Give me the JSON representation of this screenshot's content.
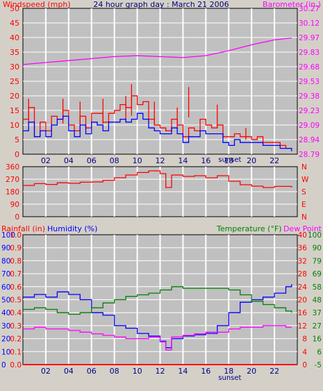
{
  "chart_data": [
    {
      "type": "line",
      "title": "24 hour graph day : March 21 2006",
      "left_axis_label": "Windspeed (mph)",
      "right_axis_label": "Barometer (in.)",
      "xlabel": "sunset",
      "x_ticks": [
        "02",
        "04",
        "06",
        "08",
        "10",
        "12",
        "14",
        "16",
        "18",
        "20",
        "22"
      ],
      "xlim": [
        0,
        24
      ],
      "ylim_left": [
        0,
        50
      ],
      "y_ticks_left": [
        "0",
        "5",
        "10",
        "15",
        "20",
        "25",
        "30",
        "35",
        "40",
        "45",
        "50"
      ],
      "ylim_right": [
        28.79,
        30.27
      ],
      "y_ticks_right": [
        "28.79",
        "28.94",
        "29.09",
        "29.23",
        "29.38",
        "29.53",
        "29.68",
        "29.83",
        "29.97",
        "30.12",
        "30.27"
      ],
      "grid": true,
      "series": [
        {
          "name": "Windspeed (mph)",
          "color": "#ff0000",
          "axis": "left",
          "x": [
            0,
            0.5,
            1,
            1.5,
            2,
            2.5,
            3,
            3.5,
            4,
            4.5,
            5,
            5.5,
            6,
            6.5,
            7,
            7.5,
            8,
            8.5,
            9,
            9.5,
            10,
            10.5,
            11,
            11.5,
            12,
            12.5,
            13,
            13.5,
            14,
            14.5,
            15,
            15.5,
            16,
            16.5,
            17,
            17.5,
            18,
            18.5,
            19,
            19.5,
            20,
            20.5,
            21,
            21.5,
            22,
            22.5,
            23,
            23.5
          ],
          "y": [
            12,
            16,
            6,
            11,
            8,
            13,
            12,
            15,
            10,
            8,
            13,
            9,
            14,
            14,
            11,
            14,
            15,
            17,
            16,
            20,
            17,
            18,
            12,
            10,
            9,
            8,
            12,
            10,
            6,
            9,
            8,
            12,
            10,
            9,
            10,
            6,
            6,
            7,
            6,
            6,
            5,
            6,
            4,
            4,
            4,
            3,
            2,
            2
          ]
        },
        {
          "name": "Gust",
          "color": "#ff0000",
          "axis": "left",
          "x": [
            0.5,
            3.5,
            5,
            7,
            9,
            9.5,
            11.5,
            13.5,
            14.5,
            17,
            19.5
          ],
          "y": [
            19,
            19,
            18,
            19,
            20,
            24,
            18,
            16,
            23,
            17,
            9
          ]
        },
        {
          "name": "Avg windspeed",
          "color": "#0000ff",
          "axis": "left",
          "x": [
            0,
            0.5,
            1,
            1.5,
            2,
            2.5,
            3,
            3.5,
            4,
            4.5,
            5,
            5.5,
            6,
            6.5,
            7,
            7.5,
            8,
            8.5,
            9,
            9.5,
            10,
            10.5,
            11,
            11.5,
            12,
            12.5,
            13,
            13.5,
            14,
            14.5,
            15,
            15.5,
            16,
            16.5,
            17,
            17.5,
            18,
            18.5,
            19,
            19.5,
            20,
            20.5,
            21,
            21.5,
            22,
            22.5,
            23,
            23.5
          ],
          "y": [
            8,
            11,
            6,
            8,
            6,
            10,
            12,
            13,
            8,
            6,
            10,
            7,
            11,
            10,
            8,
            11,
            11,
            12,
            11,
            12,
            14,
            12,
            9,
            8,
            7,
            7,
            9,
            7,
            4,
            6,
            6,
            8,
            7,
            7,
            7,
            4,
            3,
            5,
            4,
            4,
            4,
            4,
            3,
            3,
            3,
            2,
            2,
            1
          ]
        },
        {
          "name": "Barometer (in.)",
          "color": "#ff00ff",
          "axis": "right",
          "x": [
            0,
            2,
            4,
            6,
            8,
            10,
            12,
            14,
            16,
            18,
            20,
            22,
            23.5
          ],
          "y": [
            29.7,
            29.72,
            29.74,
            29.76,
            29.78,
            29.79,
            29.78,
            29.77,
            29.79,
            29.84,
            29.9,
            29.95,
            29.97
          ]
        }
      ]
    },
    {
      "type": "line",
      "ylim": [
        0,
        360
      ],
      "y_ticks_left": [
        "0",
        "90",
        "180",
        "270",
        "360"
      ],
      "y_ticks_right": [
        "N",
        "E",
        "S",
        "W",
        "N"
      ],
      "series": [
        {
          "name": "Wind direction",
          "color": "#ff0000",
          "x": [
            0,
            1,
            2,
            3,
            4,
            5,
            6,
            7,
            8,
            9,
            10,
            11,
            12,
            12.5,
            13,
            14,
            15,
            16,
            17,
            18,
            19,
            20,
            21,
            22,
            23.5
          ],
          "y": [
            225,
            238,
            232,
            244,
            240,
            248,
            250,
            262,
            280,
            300,
            318,
            330,
            310,
            210,
            300,
            290,
            295,
            280,
            295,
            255,
            230,
            220,
            210,
            218,
            210
          ]
        }
      ]
    },
    {
      "type": "line",
      "left_axis_label_1": "Rainfall (in)",
      "left_axis_label_2": "Humidity (%)",
      "right_axis_label_1": "Temperature (°F)",
      "right_axis_label_2": "Dew Point",
      "xlabel": "sunset",
      "x_ticks": [
        "02",
        "04",
        "06",
        "08",
        "10",
        "12",
        "14",
        "16",
        "18",
        "20",
        "22"
      ],
      "xlim": [
        0,
        24
      ],
      "y_ticks_rain": [
        "0.0",
        "0.1",
        "0.2",
        "0.3",
        "0.4",
        "0.5",
        "0.6",
        "0.7",
        "0.8",
        "0.9",
        "1.0"
      ],
      "y_ticks_humidity": [
        "0",
        "10",
        "20",
        "30",
        "40",
        "50",
        "60",
        "70",
        "80",
        "90",
        "100"
      ],
      "y_ticks_temp_f": [
        "0",
        "4",
        "8",
        "12",
        "16",
        "20",
        "24",
        "28",
        "32",
        "36",
        "40"
      ],
      "y_ticks_temp_f2": [
        "-5",
        "6",
        "16",
        "27",
        "37",
        "48",
        "58",
        "69",
        "79",
        "90",
        "100"
      ],
      "series": [
        {
          "name": "Rainfall (in)",
          "color": "#ff0000",
          "axis": "rain",
          "x": [
            0,
            24
          ],
          "y": [
            0,
            0
          ]
        },
        {
          "name": "Humidity (%)",
          "color": "#0000ff",
          "axis": "humidity",
          "x": [
            0,
            1,
            2,
            3,
            4,
            5,
            6,
            7,
            8,
            9,
            10,
            11,
            12,
            12.5,
            13,
            14,
            15,
            16,
            17,
            18,
            19,
            20,
            21,
            22,
            23,
            23.5
          ],
          "y": [
            52,
            54,
            52,
            56,
            54,
            50,
            40,
            38,
            30,
            28,
            24,
            22,
            18,
            13,
            20,
            22,
            23,
            24,
            30,
            40,
            48,
            50,
            52,
            55,
            60,
            62
          ]
        },
        {
          "name": "Temperature (°F)",
          "color": "#008000",
          "axis": "temp",
          "x": [
            0,
            1,
            2,
            3,
            4,
            5,
            6,
            7,
            8,
            9,
            10,
            11,
            12,
            13,
            14,
            15,
            16,
            17,
            18,
            19,
            20,
            21,
            22,
            23,
            23.5
          ],
          "y": [
            17,
            17.5,
            17,
            16,
            15.5,
            16,
            17.5,
            19,
            20,
            21,
            21.5,
            22,
            23,
            24,
            23.5,
            23.5,
            23.5,
            23.5,
            23,
            21.5,
            19.5,
            18.5,
            17.5,
            16.5,
            16
          ]
        },
        {
          "name": "Dew Point",
          "color": "#ff00ff",
          "axis": "temp",
          "x": [
            0,
            1,
            2,
            3,
            4,
            5,
            6,
            7,
            8,
            9,
            10,
            11,
            12,
            12.5,
            13,
            14,
            15,
            16,
            17,
            18,
            19,
            20,
            21,
            22,
            23,
            23.5
          ],
          "y": [
            11,
            11.5,
            11,
            11,
            10.5,
            10,
            9.5,
            9,
            8.5,
            8,
            8,
            8.5,
            7,
            4.5,
            8.5,
            9,
            9.5,
            10,
            10,
            11,
            11.5,
            11.5,
            12,
            12,
            11.5,
            11.5
          ]
        }
      ]
    }
  ]
}
